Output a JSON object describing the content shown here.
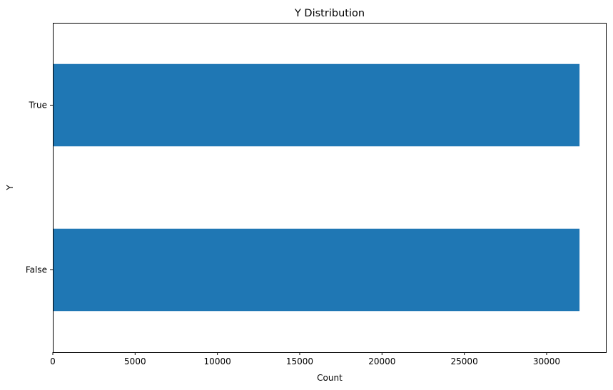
{
  "chart_data": {
    "type": "bar",
    "orientation": "horizontal",
    "title": "Y Distribution",
    "xlabel": "Count",
    "ylabel": "Y",
    "categories": [
      "False",
      "True"
    ],
    "values": [
      32000,
      32000
    ],
    "xlim": [
      0,
      33600
    ],
    "xticks": [
      0,
      5000,
      10000,
      15000,
      20000,
      25000,
      30000
    ],
    "xtick_labels": [
      "0",
      "5000",
      "10000",
      "15000",
      "20000",
      "25000",
      "30000"
    ],
    "bar_color": "#1f77b4",
    "grid": false,
    "legend": "none"
  }
}
